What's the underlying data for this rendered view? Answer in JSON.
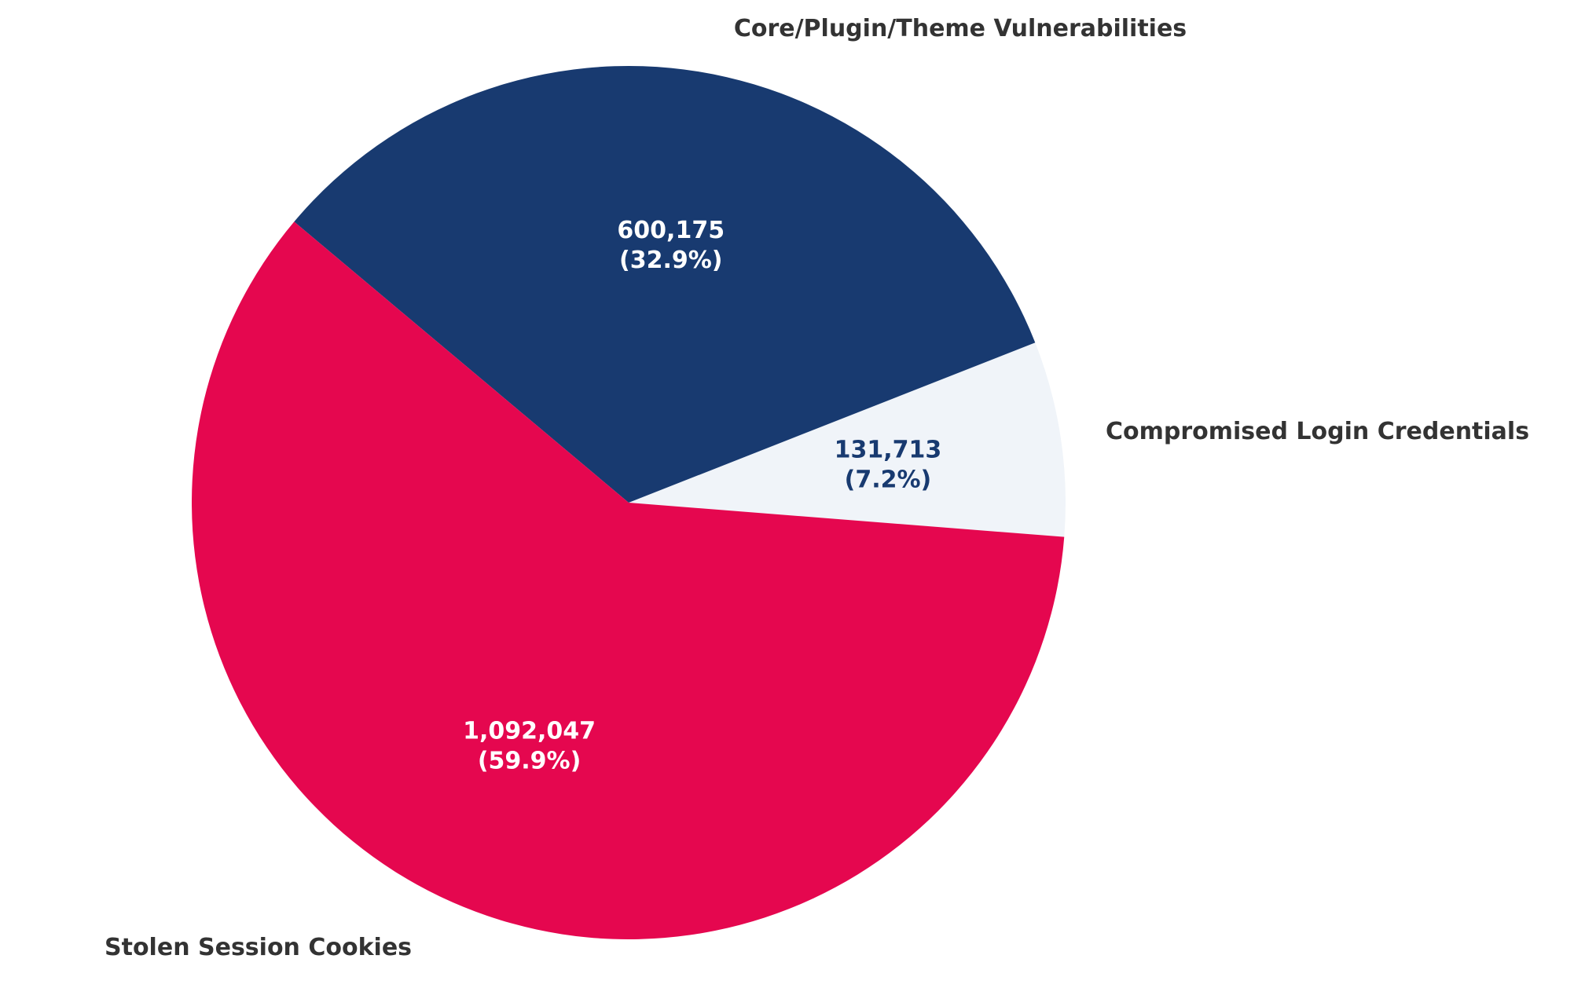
{
  "chart_data": {
    "type": "pie",
    "title": "",
    "start_angle_deg": -4.5,
    "direction": "counterclockwise",
    "slices": [
      {
        "label": "Compromised Login Credentials",
        "value": 131713,
        "value_text": "131,713",
        "percent_text": "(7.2%)",
        "color": "#f0f4f9",
        "text_color": "#183a70"
      },
      {
        "label": "Core/Plugin/Theme Vulnerabilities",
        "value": 600175,
        "value_text": "600,175",
        "percent_text": "(32.9%)",
        "color": "#183a70",
        "text_color": "#ffffff"
      },
      {
        "label": "Stolen Session Cookies",
        "value": 1092047,
        "value_text": "1,092,047",
        "percent_text": "(59.9%)",
        "color": "#e5074f",
        "text_color": "#ffffff"
      }
    ]
  }
}
